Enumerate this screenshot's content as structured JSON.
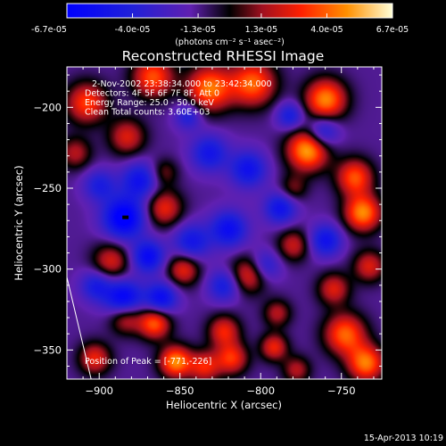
{
  "colorbar": {
    "ticks": [
      "-6.7e-05",
      "-4.0e-05",
      "-1.3e-05",
      "1.3e-05",
      "4.0e-05",
      "6.7e-05"
    ],
    "tick_values": [
      -6.7e-05,
      -4e-05,
      -1.3e-05,
      1.3e-05,
      4e-05,
      6.7e-05
    ],
    "range": [
      -6.7e-05,
      6.7e-05
    ],
    "units": "(photons cm⁻² s⁻¹ asec⁻²)"
  },
  "chart_data": {
    "type": "heatmap",
    "title": "Reconstructed RHESSI Image",
    "xlabel": "Heliocentric X (arcsec)",
    "ylabel": "Heliocentric Y (arcsec)",
    "xlim": [
      -920,
      -725
    ],
    "ylim": [
      -368,
      -175
    ],
    "x_ticks": [
      -900,
      -850,
      -800,
      -750
    ],
    "x_tick_labels": [
      "−900",
      "−850",
      "−800",
      "−750"
    ],
    "y_ticks": [
      -350,
      -300,
      -250,
      -200
    ],
    "y_tick_labels": [
      "−350",
      "−300",
      "−250",
      "−200"
    ],
    "annotations": [
      "2-Nov-2002 23:38:34.000 to 23:42:34.000",
      "Detectors: 4F 5F 6F 7F 8F, Att 0",
      "Energy Range: 25.0 - 50.0 keV",
      "Clean    Total counts: 3.60E+03"
    ],
    "peak_label": "Position of Peak = [-771,-226]",
    "peak": [
      -771,
      -226
    ],
    "limb": [
      [
        -920,
        -305
      ],
      [
        -905,
        -368
      ]
    ],
    "grid": false,
    "blobs": [
      {
        "x": -771,
        "y": -226,
        "a": 1.0,
        "s": 9
      },
      {
        "x": -760,
        "y": -195,
        "a": 0.9,
        "s": 9
      },
      {
        "x": -832,
        "y": -188,
        "a": 0.85,
        "s": 10
      },
      {
        "x": -805,
        "y": -185,
        "a": 0.8,
        "s": 10
      },
      {
        "x": -867,
        "y": -181,
        "a": 0.75,
        "s": 9
      },
      {
        "x": -908,
        "y": -197,
        "a": 0.7,
        "s": 9
      },
      {
        "x": -883,
        "y": -218,
        "a": 0.55,
        "s": 8
      },
      {
        "x": -915,
        "y": -228,
        "a": 0.45,
        "s": 7
      },
      {
        "x": -860,
        "y": -240,
        "a": 0.35,
        "s": 6
      },
      {
        "x": -742,
        "y": -243,
        "a": 0.75,
        "s": 8
      },
      {
        "x": -737,
        "y": -265,
        "a": 0.9,
        "s": 8
      },
      {
        "x": -733,
        "y": -298,
        "a": 0.55,
        "s": 7
      },
      {
        "x": -780,
        "y": -250,
        "a": 0.35,
        "s": 6
      },
      {
        "x": -860,
        "y": -262,
        "a": 0.6,
        "s": 8
      },
      {
        "x": -893,
        "y": -295,
        "a": 0.55,
        "s": 8
      },
      {
        "x": -848,
        "y": -300,
        "a": 0.6,
        "s": 7
      },
      {
        "x": -807,
        "y": -303,
        "a": 0.65,
        "s": 8
      },
      {
        "x": -780,
        "y": -285,
        "a": 0.5,
        "s": 7
      },
      {
        "x": -755,
        "y": -312,
        "a": 0.55,
        "s": 7
      },
      {
        "x": -884,
        "y": -330,
        "a": 0.55,
        "s": 7
      },
      {
        "x": -866,
        "y": -333,
        "a": 0.8,
        "s": 7
      },
      {
        "x": -823,
        "y": -338,
        "a": 0.6,
        "s": 7
      },
      {
        "x": -790,
        "y": -327,
        "a": 0.45,
        "s": 6
      },
      {
        "x": -748,
        "y": -340,
        "a": 0.8,
        "s": 9
      },
      {
        "x": -735,
        "y": -358,
        "a": 0.85,
        "s": 8
      },
      {
        "x": -853,
        "y": -357,
        "a": 0.9,
        "s": 7
      },
      {
        "x": -835,
        "y": -360,
        "a": 0.6,
        "s": 7
      },
      {
        "x": -818,
        "y": -355,
        "a": 0.65,
        "s": 7
      },
      {
        "x": -792,
        "y": -348,
        "a": 0.6,
        "s": 6
      },
      {
        "x": -778,
        "y": -362,
        "a": 0.45,
        "s": 6
      },
      {
        "x": -903,
        "y": -355,
        "a": 0.6,
        "s": 7
      },
      {
        "x": -885,
        "y": -268,
        "a": -0.9,
        "s": 9
      },
      {
        "x": -875,
        "y": -245,
        "a": -0.6,
        "s": 8
      },
      {
        "x": -843,
        "y": -283,
        "a": -0.55,
        "s": 8
      },
      {
        "x": -870,
        "y": -292,
        "a": -0.7,
        "s": 7
      },
      {
        "x": -885,
        "y": -318,
        "a": -0.8,
        "s": 8
      },
      {
        "x": -862,
        "y": -318,
        "a": -0.7,
        "s": 7
      },
      {
        "x": -820,
        "y": -275,
        "a": -0.65,
        "s": 8
      },
      {
        "x": -808,
        "y": -238,
        "a": -0.6,
        "s": 8
      },
      {
        "x": -832,
        "y": -228,
        "a": -0.55,
        "s": 8
      },
      {
        "x": -788,
        "y": -262,
        "a": -0.6,
        "s": 7
      },
      {
        "x": -760,
        "y": -282,
        "a": -0.6,
        "s": 7
      },
      {
        "x": -798,
        "y": -298,
        "a": -0.5,
        "s": 7
      },
      {
        "x": -762,
        "y": -215,
        "a": -0.6,
        "s": 7
      },
      {
        "x": -902,
        "y": -310,
        "a": -0.5,
        "s": 7
      },
      {
        "x": -900,
        "y": -248,
        "a": -0.45,
        "s": 7
      },
      {
        "x": -823,
        "y": -310,
        "a": -0.5,
        "s": 7
      },
      {
        "x": -845,
        "y": -205,
        "a": -0.45,
        "s": 6
      },
      {
        "x": -782,
        "y": -205,
        "a": -0.5,
        "s": 6
      }
    ]
  },
  "footer": {
    "date": "15-Apr-2013 10:19"
  }
}
